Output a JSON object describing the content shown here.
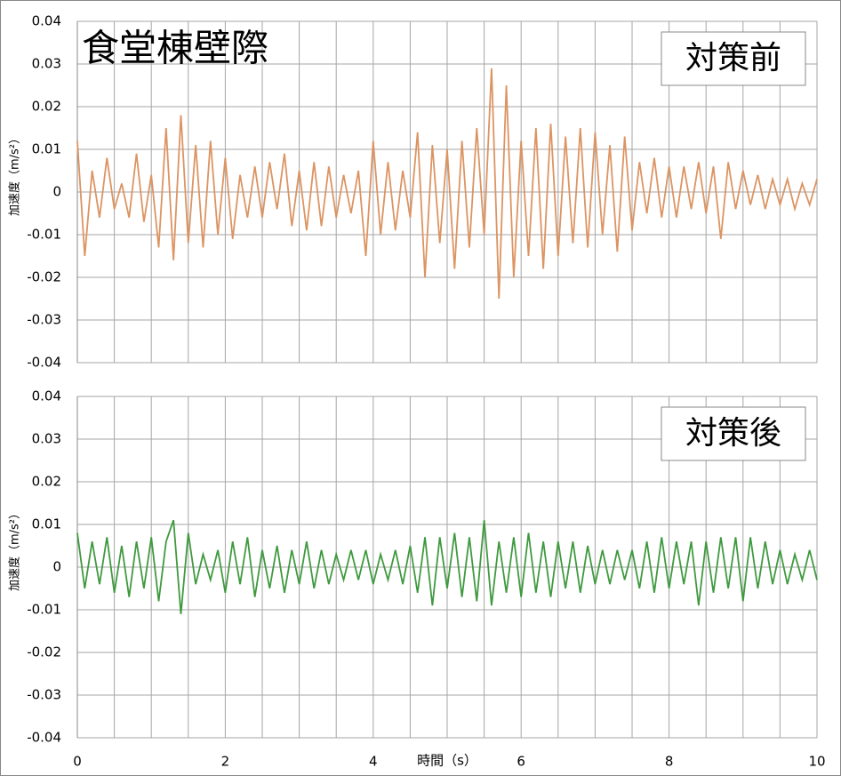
{
  "chart_data": [
    {
      "type": "line",
      "title": "食堂棟壁際",
      "annotation": "対策前",
      "ylabel": "加速度（m/s²）",
      "xlim": [
        0,
        10
      ],
      "ylim": [
        -0.04,
        0.04
      ],
      "yticks": [
        0.04,
        0.03,
        0.02,
        0.01,
        0,
        -0.01,
        -0.02,
        -0.03,
        -0.04
      ],
      "xgrid": [
        0,
        0.5,
        1,
        1.5,
        2,
        2.5,
        3,
        3.5,
        4,
        4.5,
        5,
        5.5,
        6,
        6.5,
        7,
        7.5,
        8,
        8.5,
        9,
        9.5,
        10
      ],
      "grid": true,
      "x": [
        0,
        0.1,
        0.2,
        0.3,
        0.4,
        0.5,
        0.6,
        0.7,
        0.8,
        0.9,
        1,
        1.1,
        1.2,
        1.3,
        1.4,
        1.5,
        1.6,
        1.7,
        1.8,
        1.9,
        2,
        2.1,
        2.2,
        2.3,
        2.4,
        2.5,
        2.6,
        2.7,
        2.8,
        2.9,
        3,
        3.1,
        3.2,
        3.3,
        3.4,
        3.5,
        3.6,
        3.7,
        3.8,
        3.9,
        4,
        4.1,
        4.2,
        4.3,
        4.4,
        4.5,
        4.6,
        4.7,
        4.8,
        4.9,
        5,
        5.1,
        5.2,
        5.3,
        5.4,
        5.5,
        5.6,
        5.7,
        5.8,
        5.9,
        6,
        6.1,
        6.2,
        6.3,
        6.4,
        6.5,
        6.6,
        6.7,
        6.8,
        6.9,
        7,
        7.1,
        7.2,
        7.3,
        7.4,
        7.5,
        7.6,
        7.7,
        7.8,
        7.9,
        8,
        8.1,
        8.2,
        8.3,
        8.4,
        8.5,
        8.6,
        8.7,
        8.8,
        8.9,
        9,
        9.1,
        9.2,
        9.3,
        9.4,
        9.5,
        9.6,
        9.7,
        9.8,
        9.9,
        10
      ],
      "series": [
        {
          "name": "対策前",
          "color": "#dc9462",
          "values": [
            0.012,
            -0.015,
            0.005,
            -0.006,
            0.008,
            -0.004,
            0.002,
            -0.006,
            0.009,
            -0.007,
            0.004,
            -0.013,
            0.015,
            -0.016,
            0.018,
            -0.012,
            0.011,
            -0.013,
            0.012,
            -0.01,
            0.008,
            -0.011,
            0.004,
            -0.006,
            0.006,
            -0.006,
            0.007,
            -0.004,
            0.009,
            -0.008,
            0.005,
            -0.009,
            0.007,
            -0.008,
            0.006,
            -0.006,
            0.004,
            -0.005,
            0.005,
            -0.015,
            0.012,
            -0.01,
            0.007,
            -0.009,
            0.005,
            -0.006,
            0.014,
            -0.02,
            0.011,
            -0.012,
            0.01,
            -0.018,
            0.012,
            -0.013,
            0.015,
            -0.01,
            0.029,
            -0.025,
            0.025,
            -0.02,
            0.012,
            -0.015,
            0.015,
            -0.018,
            0.016,
            -0.015,
            0.013,
            -0.012,
            0.015,
            -0.013,
            0.014,
            -0.01,
            0.011,
            -0.014,
            0.013,
            -0.009,
            0.007,
            -0.005,
            0.008,
            -0.006,
            0.006,
            -0.006,
            0.006,
            -0.004,
            0.007,
            -0.005,
            0.006,
            -0.011,
            0.007,
            -0.004,
            0.005,
            -0.003,
            0.004,
            -0.004,
            0.003,
            -0.003,
            0.003,
            -0.004,
            0.002,
            -0.003,
            0.003
          ]
        }
      ]
    },
    {
      "type": "line",
      "annotation": "対策後",
      "ylabel": "加速度（m/s²）",
      "xlabel": "時間（s）",
      "xlim": [
        0,
        10
      ],
      "ylim": [
        -0.04,
        0.04
      ],
      "yticks": [
        0.04,
        0.03,
        0.02,
        0.01,
        0,
        -0.01,
        -0.02,
        -0.03,
        -0.04
      ],
      "xticks": [
        0,
        2,
        4,
        6,
        8,
        10
      ],
      "xgrid": [
        0,
        0.5,
        1,
        1.5,
        2,
        2.5,
        3,
        3.5,
        4,
        4.5,
        5,
        5.5,
        6,
        6.5,
        7,
        7.5,
        8,
        8.5,
        9,
        9.5,
        10
      ],
      "grid": true,
      "x": [
        0,
        0.1,
        0.2,
        0.3,
        0.4,
        0.5,
        0.6,
        0.7,
        0.8,
        0.9,
        1,
        1.1,
        1.2,
        1.3,
        1.4,
        1.5,
        1.6,
        1.7,
        1.8,
        1.9,
        2,
        2.1,
        2.2,
        2.3,
        2.4,
        2.5,
        2.6,
        2.7,
        2.8,
        2.9,
        3,
        3.1,
        3.2,
        3.3,
        3.4,
        3.5,
        3.6,
        3.7,
        3.8,
        3.9,
        4,
        4.1,
        4.2,
        4.3,
        4.4,
        4.5,
        4.6,
        4.7,
        4.8,
        4.9,
        5,
        5.1,
        5.2,
        5.3,
        5.4,
        5.5,
        5.6,
        5.7,
        5.8,
        5.9,
        6,
        6.1,
        6.2,
        6.3,
        6.4,
        6.5,
        6.6,
        6.7,
        6.8,
        6.9,
        7,
        7.1,
        7.2,
        7.3,
        7.4,
        7.5,
        7.6,
        7.7,
        7.8,
        7.9,
        8,
        8.1,
        8.2,
        8.3,
        8.4,
        8.5,
        8.6,
        8.7,
        8.8,
        8.9,
        9,
        9.1,
        9.2,
        9.3,
        9.4,
        9.5,
        9.6,
        9.7,
        9.8,
        9.9,
        10
      ],
      "series": [
        {
          "name": "対策後",
          "color": "#3f9a3f",
          "values": [
            0.008,
            -0.005,
            0.006,
            -0.004,
            0.007,
            -0.006,
            0.005,
            -0.007,
            0.006,
            -0.005,
            0.007,
            -0.008,
            0.006,
            0.011,
            -0.011,
            0.008,
            -0.004,
            0.003,
            -0.003,
            0.004,
            -0.006,
            0.006,
            -0.004,
            0.007,
            -0.007,
            0.004,
            -0.005,
            0.005,
            -0.006,
            0.004,
            -0.004,
            0.006,
            -0.005,
            0.004,
            -0.004,
            0.003,
            -0.003,
            0.004,
            -0.003,
            0.004,
            -0.004,
            0.003,
            -0.003,
            0.004,
            -0.004,
            0.005,
            -0.006,
            0.007,
            -0.009,
            0.007,
            -0.005,
            0.008,
            -0.007,
            0.007,
            -0.008,
            0.011,
            -0.009,
            0.006,
            -0.006,
            0.007,
            -0.007,
            0.008,
            -0.006,
            0.006,
            -0.007,
            0.006,
            -0.005,
            0.006,
            -0.006,
            0.005,
            -0.004,
            0.004,
            -0.004,
            0.004,
            -0.003,
            0.004,
            -0.005,
            0.006,
            -0.006,
            0.007,
            -0.005,
            0.006,
            -0.004,
            0.006,
            -0.009,
            0.006,
            -0.006,
            0.007,
            -0.005,
            0.007,
            -0.008,
            0.007,
            -0.005,
            0.006,
            -0.004,
            0.004,
            -0.004,
            0.003,
            -0.003,
            0.004,
            -0.003
          ]
        }
      ]
    }
  ]
}
